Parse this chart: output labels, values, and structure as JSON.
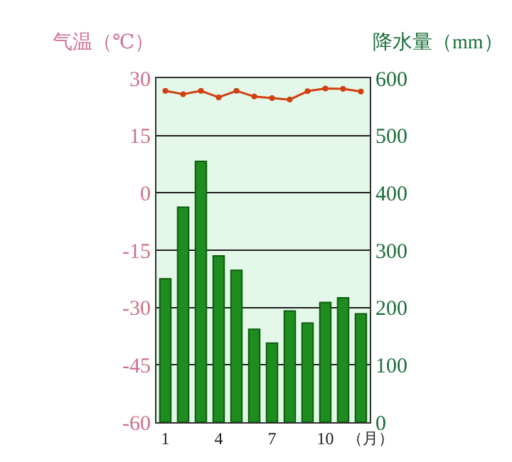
{
  "chart_data": {
    "type": "bar",
    "categories": [
      "1",
      null,
      null,
      "4",
      null,
      null,
      "7",
      null,
      null,
      "10",
      null,
      null
    ],
    "xlabel": "（月）",
    "ylabel": "气温（℃）",
    "y2label": "降水量（mm）",
    "series": [
      {
        "axis": "y2",
        "color": "#1e8c1e",
        "values": [
          250,
          375,
          455,
          290,
          265,
          162,
          138,
          194,
          173,
          209,
          217,
          189
        ]
      },
      {
        "type": "line",
        "axis": "y",
        "color": "#d04010",
        "marker": "circle",
        "values": [
          26.7,
          25.8,
          26.7,
          25,
          26.7,
          25.2,
          24.8,
          24.4,
          26.6,
          27.3,
          27.2,
          26.5
        ]
      }
    ],
    "ylim": [
      -60,
      30
    ],
    "yticks": [
      -60,
      -45,
      -30,
      -15,
      0,
      15,
      30
    ],
    "y2lim": [
      0,
      600
    ],
    "y2ticks": [
      0,
      100,
      200,
      300,
      400,
      500,
      600
    ],
    "grid": "y"
  }
}
